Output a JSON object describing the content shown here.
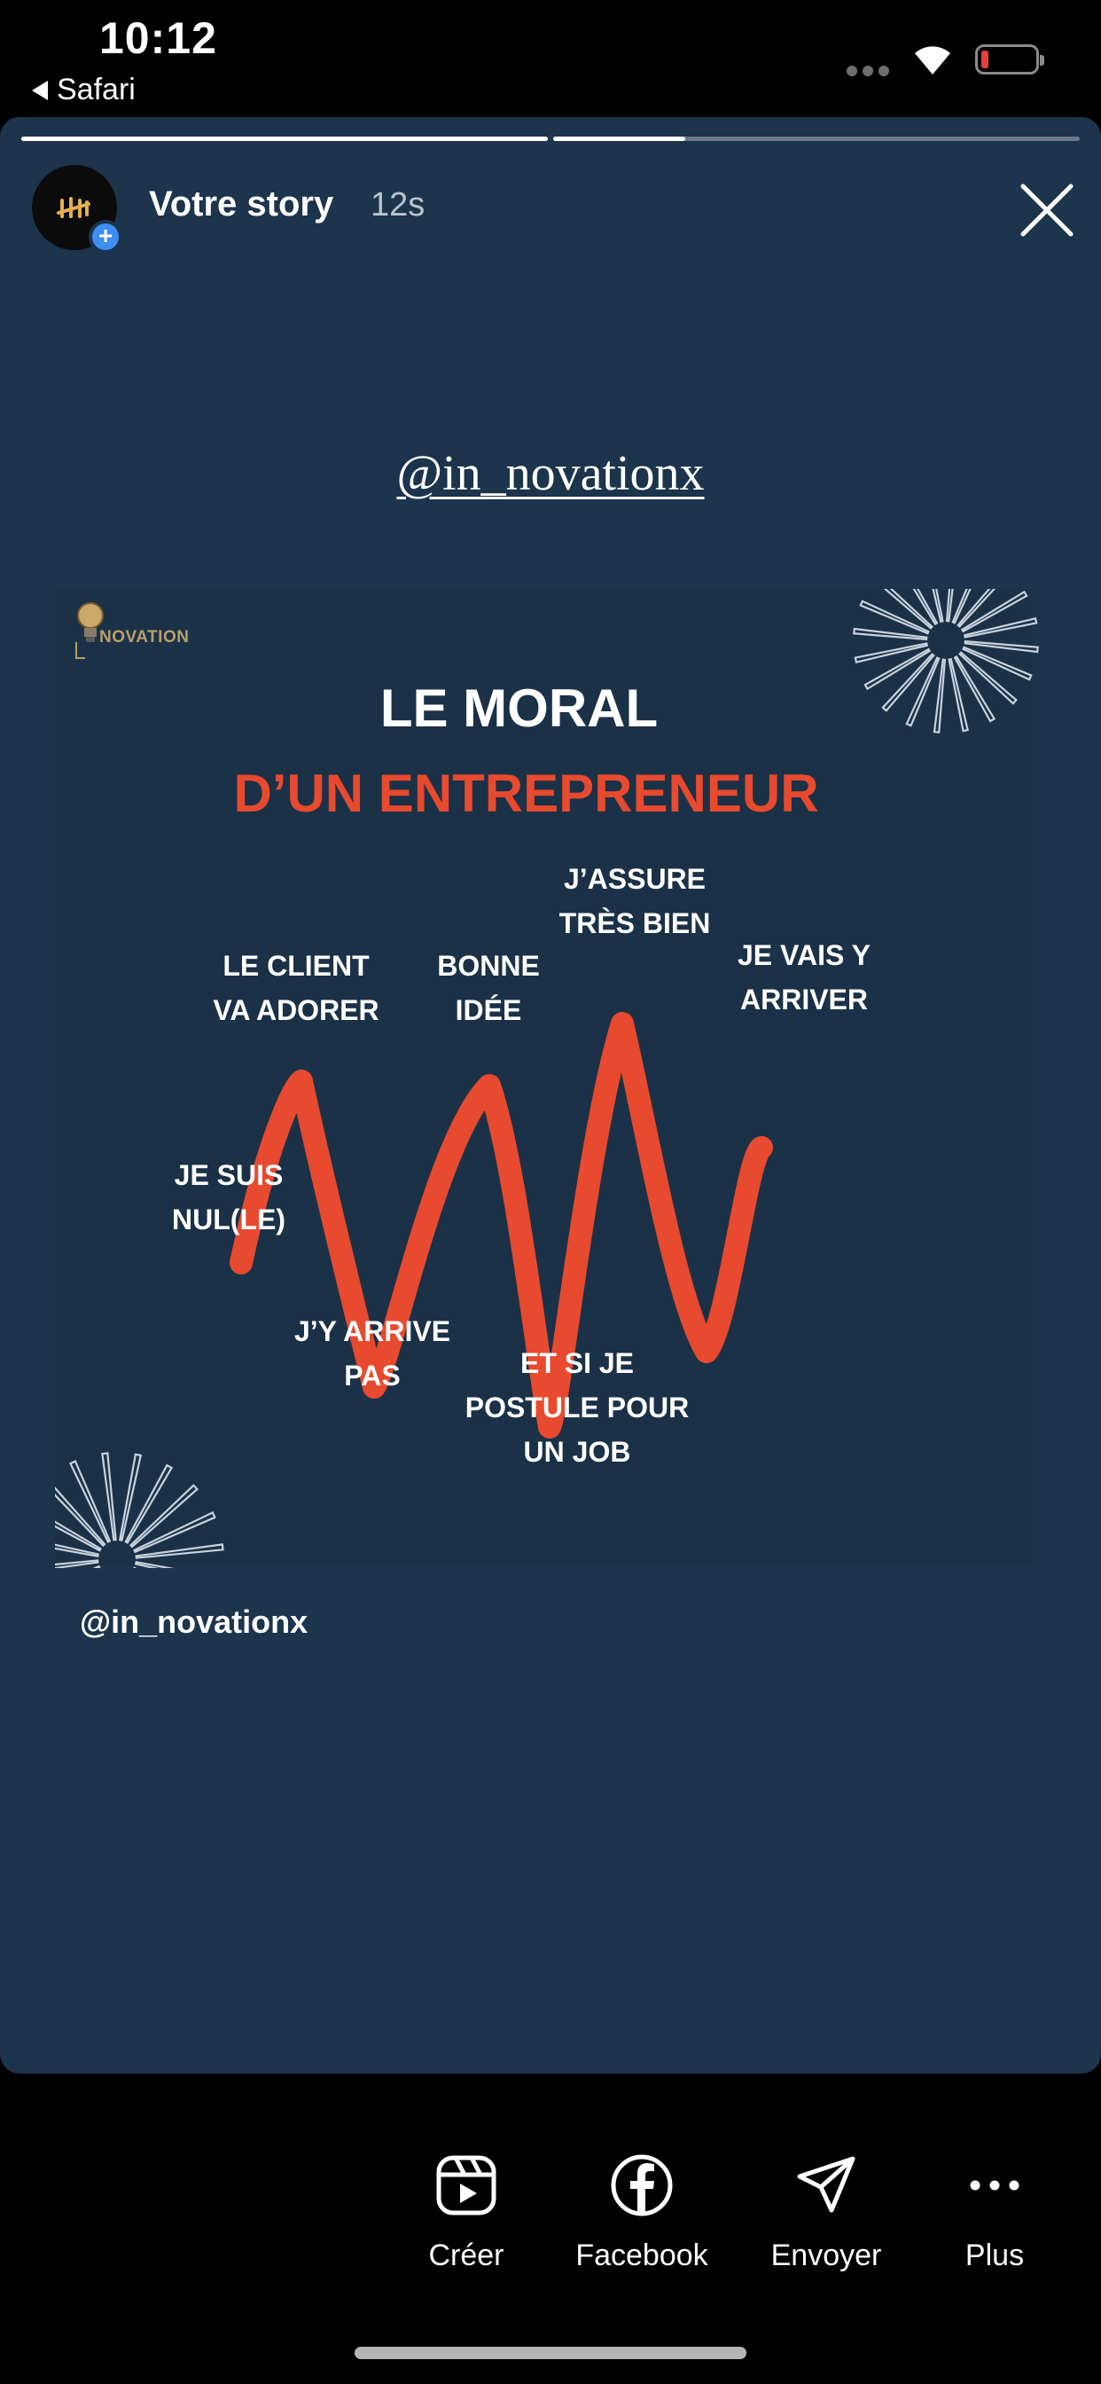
{
  "status_bar": {
    "time": "10:12",
    "back_label": "Safari",
    "battery_color": "#e5413b"
  },
  "story": {
    "username": "Votre story",
    "timestamp": "12s",
    "progress": [
      1.0,
      0.25
    ],
    "background_color": "#1c344c",
    "mention_top": "@in_novationx",
    "mention_bottom": "@in_novationx",
    "post": {
      "logo_text": "NOVATION",
      "title": "LE MORAL",
      "subtitle": "D’UN ENTREPRENEUR",
      "accent_color": "#e74a2e",
      "labels": {
        "je_suis_nul": [
          "JE SUIS",
          "NUL(LE)"
        ],
        "le_client": [
          "LE CLIENT",
          "VA ADORER"
        ],
        "j_y_arrive_pas": [
          "J’Y ARRIVE",
          "PAS"
        ],
        "bonne_idee": [
          "BONNE",
          "IDÉE"
        ],
        "et_si_je": [
          "ET SI JE",
          "POSTULE POUR",
          "UN JOB"
        ],
        "j_assure": [
          "J’ASSURE",
          "TRÈS BIEN"
        ],
        "je_vais_y": [
          "JE VAIS Y",
          "ARRIVER"
        ]
      }
    }
  },
  "toolbar": {
    "create_label": "Créer",
    "facebook_label": "Facebook",
    "send_label": "Envoyer",
    "more_label": "Plus"
  }
}
